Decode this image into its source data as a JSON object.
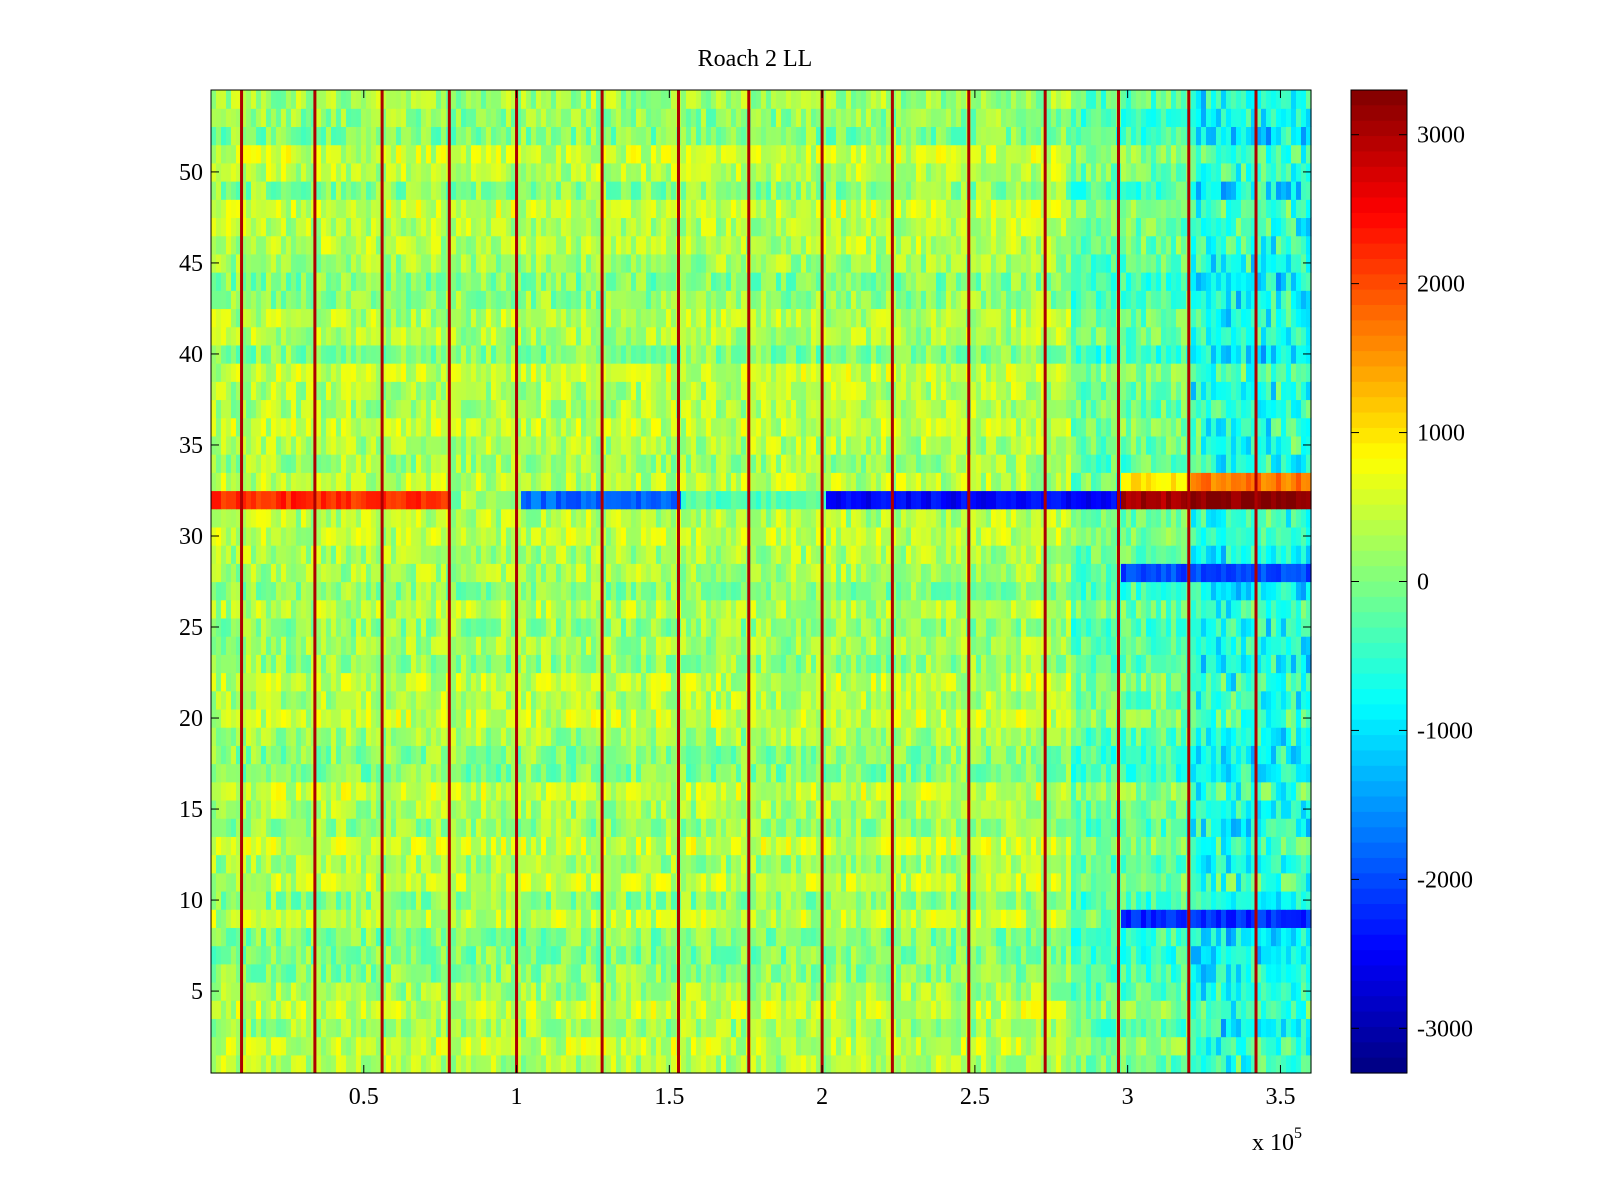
{
  "chart_data": {
    "type": "heatmap",
    "title": "Roach 2 LL",
    "xlabel": "",
    "ylabel": "",
    "x_scale_label": {
      "prefix": "x 10",
      "exponent": "5"
    },
    "xlim": [
      0,
      360000
    ],
    "ylim": [
      0.5,
      54.5
    ],
    "x_ticks": [
      {
        "value": 50000,
        "label": "0.5"
      },
      {
        "value": 100000,
        "label": "1"
      },
      {
        "value": 150000,
        "label": "1.5"
      },
      {
        "value": 200000,
        "label": "2"
      },
      {
        "value": 250000,
        "label": "2.5"
      },
      {
        "value": 300000,
        "label": "3"
      },
      {
        "value": 350000,
        "label": "3.5"
      }
    ],
    "y_ticks": [
      {
        "value": 5,
        "label": "5"
      },
      {
        "value": 10,
        "label": "10"
      },
      {
        "value": 15,
        "label": "15"
      },
      {
        "value": 20,
        "label": "20"
      },
      {
        "value": 25,
        "label": "25"
      },
      {
        "value": 30,
        "label": "30"
      },
      {
        "value": 35,
        "label": "35"
      },
      {
        "value": 40,
        "label": "40"
      },
      {
        "value": 45,
        "label": "45"
      },
      {
        "value": 50,
        "label": "50"
      }
    ],
    "n_rows": 54,
    "colormap": "jet",
    "clim": [
      -3300,
      3300
    ],
    "colorbar_ticks": [
      {
        "value": 3000,
        "label": "3000"
      },
      {
        "value": 2000,
        "label": "2000"
      },
      {
        "value": 1000,
        "label": "1000"
      },
      {
        "value": 0,
        "label": "0"
      },
      {
        "value": -1000,
        "label": "-1000"
      },
      {
        "value": -2000,
        "label": "-2000"
      },
      {
        "value": -3000,
        "label": "-3000"
      }
    ],
    "baseline_level": 250,
    "right_region_start": 320000,
    "right_region_level": -900,
    "spike_columns": [
      10000,
      34000,
      56000,
      78000,
      100000,
      128000,
      153000,
      176000,
      200000,
      223000,
      248000,
      273000,
      297000,
      320000,
      342000
    ],
    "spike_value": 3000,
    "notable_rows": [
      {
        "row": 32,
        "segments": [
          {
            "x_start": 0,
            "x_end": 78000,
            "value": 2200
          },
          {
            "x_start": 100000,
            "x_end": 153000,
            "value": -1800
          },
          {
            "x_start": 153000,
            "x_end": 200000,
            "value": -300
          },
          {
            "x_start": 200000,
            "x_end": 297000,
            "value": -2500
          },
          {
            "x_start": 297000,
            "x_end": 320000,
            "value": 3000
          },
          {
            "x_start": 320000,
            "x_end": 360000,
            "value": 3300
          }
        ]
      },
      {
        "row": 33,
        "segments": [
          {
            "x_start": 297000,
            "x_end": 320000,
            "value": 1000
          },
          {
            "x_start": 320000,
            "x_end": 360000,
            "value": 1700
          }
        ]
      },
      {
        "row": 28,
        "segments": [
          {
            "x_start": 297000,
            "x_end": 360000,
            "value": -2000
          }
        ]
      },
      {
        "row": 9,
        "segments": [
          {
            "x_start": 297000,
            "x_end": 360000,
            "value": -2200
          }
        ]
      }
    ]
  }
}
